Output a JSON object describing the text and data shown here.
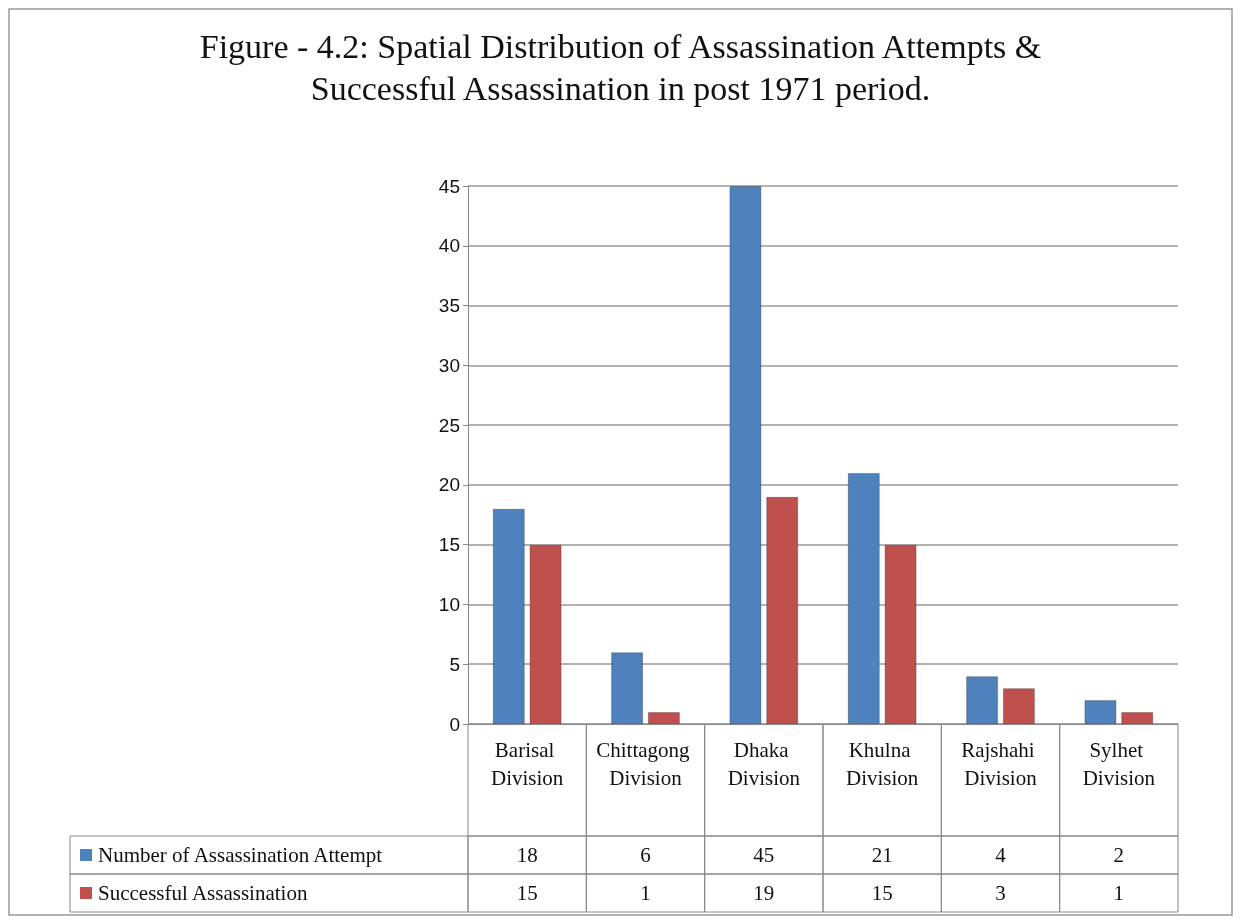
{
  "chart_data": {
    "type": "bar",
    "title": "Figure - 4.2: Spatial Distribution of Assassination Attempts &\nSuccessful Assassination in post 1971 period.",
    "categories": [
      "Barisal Division",
      "Chittagong Division",
      "Dhaka Division",
      "Khulna Division",
      "Rajshahi Division",
      "Sylhet Division"
    ],
    "series": [
      {
        "name": "Number of Assassination Attempt",
        "color": "#4f81bd",
        "values": [
          18,
          6,
          45,
          21,
          4,
          2
        ]
      },
      {
        "name": "Successful Assassination",
        "color": "#c0504d",
        "values": [
          15,
          1,
          19,
          15,
          3,
          1
        ]
      }
    ],
    "ylim": [
      0,
      45
    ],
    "yticks": [
      0,
      5,
      10,
      15,
      20,
      25,
      30,
      35,
      40,
      45
    ],
    "grid": "y",
    "legend": "bottom",
    "data_labels": true
  }
}
